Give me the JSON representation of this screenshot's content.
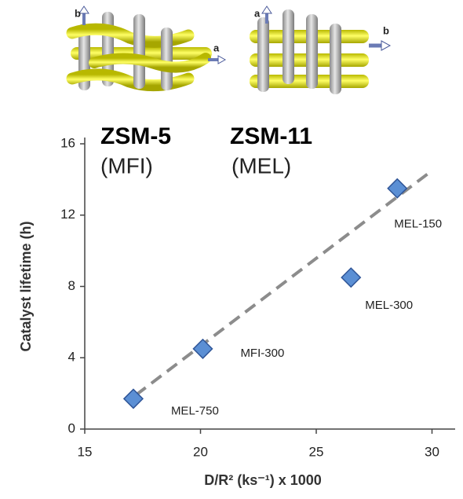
{
  "chart_data": {
    "type": "scatter",
    "framework_labels": [
      {
        "name": "ZSM-5",
        "code": "(MFI)"
      },
      {
        "name": "ZSM-11",
        "code": "(MEL)"
      }
    ],
    "diagram_axes": [
      [
        "b",
        "a"
      ],
      [
        "a",
        "b"
      ]
    ],
    "xlabel": "D/R² (ks⁻¹) x 1000",
    "ylabel": "Catalyst lifetime (h)",
    "xlim": [
      15,
      31
    ],
    "xticks": [
      15,
      20,
      25,
      30
    ],
    "ylim": [
      0,
      16
    ],
    "yticks": [
      0,
      4,
      8,
      12,
      16
    ],
    "series": [
      {
        "color": "#5b8fd4",
        "x": [
          17.1,
          20.1,
          26.5,
          28.5
        ],
        "values": [
          1.7,
          4.5,
          8.5,
          13.5
        ],
        "labels": [
          "MEL-750",
          "MFI-300",
          "MEL-300",
          "MEL-150"
        ]
      }
    ],
    "trendline": {
      "color": "#8c8c8c",
      "x": [
        17.2,
        29.8
      ],
      "values": [
        1.9,
        14.3
      ]
    }
  }
}
